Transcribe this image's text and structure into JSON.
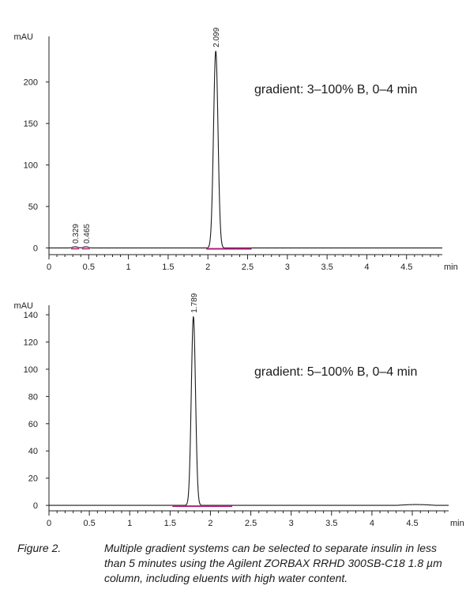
{
  "chart_data": [
    {
      "type": "line",
      "title": "",
      "annotation": "gradient: 3–100% B, 0–4 min",
      "ylabel": "mAU",
      "xlabel": "min",
      "xlim": [
        0,
        4.95
      ],
      "ylim": [
        -8,
        255
      ],
      "xticks": [
        0,
        0.5,
        1,
        1.5,
        2,
        2.5,
        3,
        3.5,
        4,
        4.5
      ],
      "xtick_labels": [
        "0",
        "0.5",
        "1",
        "1.5",
        "2",
        "2.5",
        "3",
        "3.5",
        "4",
        "4.5"
      ],
      "yticks": [
        0,
        50,
        100,
        150,
        200
      ],
      "ytick_labels": [
        "0",
        "50",
        "100",
        "150",
        "200"
      ],
      "peaks": [
        {
          "rt": 0.329,
          "label": "0.329",
          "height": 1.5
        },
        {
          "rt": 0.465,
          "label": "0.465",
          "height": 1.5
        },
        {
          "rt": 2.099,
          "label": "2.099",
          "height": 238
        }
      ],
      "integration_baseline": {
        "from": 1.98,
        "to": 2.55
      },
      "colors": {
        "trace": "#1a1a1a",
        "baseline": "#b0207a"
      }
    },
    {
      "type": "line",
      "title": "",
      "annotation": "gradient: 5–100% B, 0–4 min",
      "ylabel": "mAU",
      "xlabel": "min",
      "xlim": [
        0,
        4.95
      ],
      "ylim": [
        -4,
        147
      ],
      "xticks": [
        0,
        0.5,
        1,
        1.5,
        2,
        2.5,
        3,
        3.5,
        4,
        4.5
      ],
      "xtick_labels": [
        "0",
        "0.5",
        "1",
        "1.5",
        "2",
        "2.5",
        "3",
        "3.5",
        "4",
        "4.5"
      ],
      "yticks": [
        0,
        20,
        40,
        60,
        80,
        100,
        120,
        140
      ],
      "ytick_labels": [
        "0",
        "20",
        "40",
        "60",
        "80",
        "100",
        "120",
        "140"
      ],
      "peaks": [
        {
          "rt": 1.789,
          "label": "1.789",
          "height": 139
        }
      ],
      "integration_baseline": {
        "from": 1.53,
        "to": 2.27
      },
      "colors": {
        "trace": "#1a1a1a",
        "baseline": "#b0207a"
      }
    }
  ],
  "caption": {
    "label": "Figure 2.",
    "text": "Multiple gradient systems can be selected to separate insulin in less than 5 minutes using the Agilent ZORBAX RRHD 300SB-C18 1.8 µm column, including eluents with high water content."
  }
}
